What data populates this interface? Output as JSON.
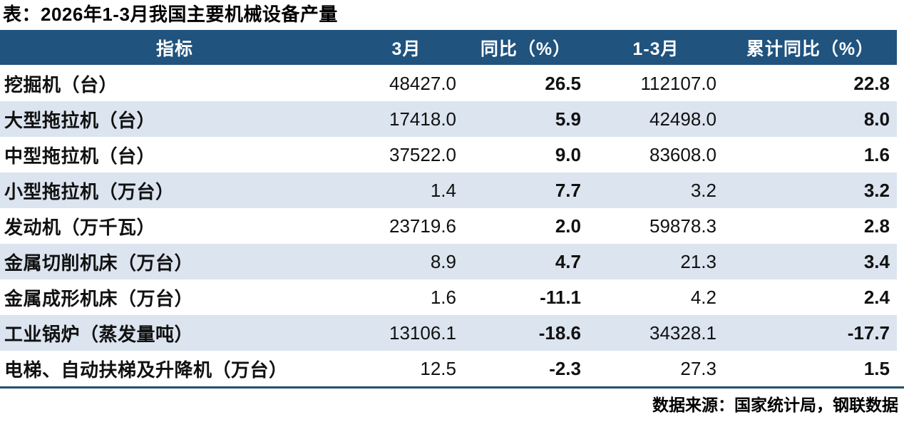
{
  "title": "表：2026年1-3月我国主要机械设备产量",
  "source_note": "数据来源：国家统计局，钢联数据",
  "colors": {
    "header_bg": "#20537E",
    "row_alt_bg": "#DBE4EF",
    "positive": "#B01E23",
    "negative": "#4E7233",
    "bottom_rule": "#24506E"
  },
  "header": {
    "columns": [
      "指标",
      "3月",
      "同比（%）",
      "1-3月",
      "累计同比（%）"
    ]
  },
  "rows": [
    {
      "indicator": "挖掘机（台）",
      "month": "48427.0",
      "yoy": "26.5",
      "cumulative": "112107.0",
      "cumulative_yoy": "22.8"
    },
    {
      "indicator": "大型拖拉机（台）",
      "month": "17418.0",
      "yoy": "5.9",
      "cumulative": "42498.0",
      "cumulative_yoy": "8.0"
    },
    {
      "indicator": "中型拖拉机（台）",
      "month": "37522.0",
      "yoy": "9.0",
      "cumulative": "83608.0",
      "cumulative_yoy": "1.6"
    },
    {
      "indicator": "小型拖拉机（万台）",
      "month": "1.4",
      "yoy": "7.7",
      "cumulative": "3.2",
      "cumulative_yoy": "3.2"
    },
    {
      "indicator": "发动机（万千瓦）",
      "month": "23719.6",
      "yoy": "2.0",
      "cumulative": "59878.3",
      "cumulative_yoy": "2.8"
    },
    {
      "indicator": "金属切削机床（万台）",
      "month": "8.9",
      "yoy": "4.7",
      "cumulative": "21.3",
      "cumulative_yoy": "3.4"
    },
    {
      "indicator": "金属成形机床（万台）",
      "month": "1.6",
      "yoy": "-11.1",
      "cumulative": "4.2",
      "cumulative_yoy": "2.4"
    },
    {
      "indicator": "工业锅炉（蒸发量吨）",
      "month": "13106.1",
      "yoy": "-18.6",
      "cumulative": "34328.1",
      "cumulative_yoy": "-17.7"
    },
    {
      "indicator": "电梯、自动扶梯及升降机（万台）",
      "month": "12.5",
      "yoy": "-2.3",
      "cumulative": "27.3",
      "cumulative_yoy": "1.5"
    }
  ],
  "chart_data": {
    "type": "table",
    "title": "表：2026年1-3月我国主要机械设备产量",
    "columns": [
      "指标",
      "3月",
      "同比（%）",
      "1-3月",
      "累计同比（%）"
    ],
    "rows": [
      [
        "挖掘机（台）",
        48427.0,
        26.5,
        112107.0,
        22.8
      ],
      [
        "大型拖拉机（台）",
        17418.0,
        5.9,
        42498.0,
        8.0
      ],
      [
        "中型拖拉机（台）",
        37522.0,
        9.0,
        83608.0,
        1.6
      ],
      [
        "小型拖拉机（万台）",
        1.4,
        7.7,
        3.2,
        3.2
      ],
      [
        "发动机（万千瓦）",
        23719.6,
        2.0,
        59878.3,
        2.8
      ],
      [
        "金属切削机床（万台）",
        8.9,
        4.7,
        21.3,
        3.4
      ],
      [
        "金属成形机床（万台）",
        1.6,
        -11.1,
        4.2,
        2.4
      ],
      [
        "工业锅炉（蒸发量吨）",
        13106.1,
        -18.6,
        34328.1,
        -17.7
      ],
      [
        "电梯、自动扶梯及升降机（万台）",
        12.5,
        -2.3,
        27.3,
        1.5
      ]
    ],
    "value_color_rule": "negative values green (#4E7233), non-negative growth values red (#B01E23)",
    "source": "数据来源：国家统计局，钢联数据"
  }
}
